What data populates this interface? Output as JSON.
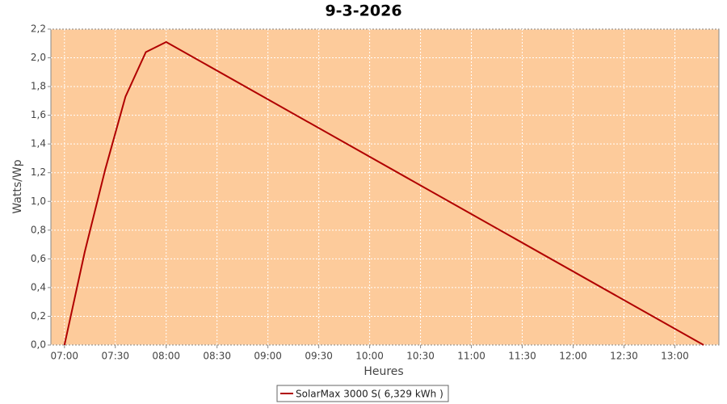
{
  "chart_data": {
    "type": "line",
    "title": "9-3-2026",
    "x_label": "Heures",
    "y_label": "Watts/Wp",
    "x": [
      "07:00",
      "07:12",
      "07:24",
      "07:36",
      "07:48",
      "08:00",
      "13:17"
    ],
    "series": [
      {
        "name": "SolarMax 3000 S( 6,329 kWh )",
        "color": "#b00000",
        "values": [
          0.0,
          0.65,
          1.22,
          1.73,
          2.04,
          2.11,
          0.0
        ]
      }
    ],
    "xlim": [
      "06:52",
      "13:26"
    ],
    "xticks": [
      "07:00",
      "07:30",
      "08:00",
      "08:30",
      "09:00",
      "09:30",
      "10:00",
      "10:30",
      "11:00",
      "11:30",
      "12:00",
      "12:30",
      "13:00"
    ],
    "ylim": [
      0,
      2.2
    ],
    "yticks": [
      {
        "value": 0,
        "label": "0,0"
      },
      {
        "value": 0.2,
        "label": "0,2"
      },
      {
        "value": 0.4,
        "label": "0,4"
      },
      {
        "value": 0.6,
        "label": "0,6"
      },
      {
        "value": 0.8,
        "label": "0,8"
      },
      {
        "value": 1.0,
        "label": "1,0"
      },
      {
        "value": 1.2,
        "label": "1,2"
      },
      {
        "value": 1.4,
        "label": "1,4"
      },
      {
        "value": 1.6,
        "label": "1,6"
      },
      {
        "value": 1.8,
        "label": "1,8"
      },
      {
        "value": 2.0,
        "label": "2,0"
      },
      {
        "value": 2.2,
        "label": "2,2"
      }
    ],
    "grid": true,
    "background": "#fdcb9b",
    "legend": "bottom"
  }
}
